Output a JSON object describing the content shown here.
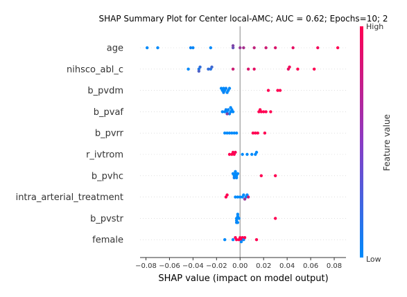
{
  "chart_data": {
    "type": "scatter",
    "title": "SHAP Summary Plot for Center local-AMC; AUC = 0.62; Epochs=10; 2",
    "xlabel": "SHAP value (impact on model output)",
    "ylabel": "",
    "xlim": [
      -0.085,
      0.09
    ],
    "x_ticks": [
      -0.08,
      -0.06,
      -0.04,
      -0.02,
      0.0,
      0.02,
      0.04,
      0.06,
      0.08
    ],
    "x_tick_labels": [
      "−0.08",
      "−0.06",
      "−0.04",
      "−0.02",
      "0.00",
      "0.02",
      "0.04",
      "0.06",
      "0.08"
    ],
    "grid": false,
    "colorbar": {
      "title": "Feature value",
      "high_label": "High",
      "low_label": "Low",
      "low_color": "#008afb",
      "high_color": "#ff0052"
    },
    "features": [
      {
        "name": "age",
        "points": [
          [
            -0.079,
            0.0
          ],
          [
            -0.07,
            0.0
          ],
          [
            -0.042,
            0.05
          ],
          [
            -0.04,
            0.02
          ],
          [
            -0.025,
            0.0
          ],
          [
            -0.006,
            0.4
          ],
          [
            -0.006,
            0.5
          ],
          [
            0.0,
            0.6
          ],
          [
            0.003,
            0.65
          ],
          [
            0.012,
            0.75
          ],
          [
            0.022,
            0.8
          ],
          [
            0.03,
            0.85
          ],
          [
            0.045,
            0.9
          ],
          [
            0.066,
            0.95
          ],
          [
            0.083,
            1.0
          ]
        ]
      },
      {
        "name": "nihsco_abl_c",
        "points": [
          [
            -0.044,
            0.0
          ],
          [
            -0.035,
            0.1
          ],
          [
            -0.034,
            0.2
          ],
          [
            -0.035,
            0.3
          ],
          [
            -0.025,
            0.15
          ],
          [
            -0.027,
            0.2
          ],
          [
            -0.024,
            0.25
          ],
          [
            -0.006,
            0.8
          ],
          [
            0.007,
            0.85
          ],
          [
            0.012,
            0.9
          ],
          [
            0.041,
            0.9
          ],
          [
            0.042,
            0.95
          ],
          [
            0.049,
            1.0
          ],
          [
            0.063,
            1.0
          ]
        ]
      },
      {
        "name": "b_pvdm",
        "points": [
          [
            -0.015,
            0.0
          ],
          [
            -0.014,
            0.0
          ],
          [
            -0.016,
            0.0
          ],
          [
            -0.013,
            0.0
          ],
          [
            -0.012,
            0.05
          ],
          [
            -0.01,
            0.0
          ],
          [
            -0.014,
            0.05
          ],
          [
            -0.011,
            0.0
          ],
          [
            -0.009,
            0.0
          ],
          [
            0.024,
            1.0
          ],
          [
            0.032,
            1.0
          ],
          [
            0.034,
            1.0
          ]
        ]
      },
      {
        "name": "b_pvaf",
        "points": [
          [
            -0.015,
            0.0
          ],
          [
            -0.013,
            0.0
          ],
          [
            -0.012,
            0.05
          ],
          [
            -0.011,
            0.0
          ],
          [
            -0.01,
            0.0
          ],
          [
            -0.008,
            0.0
          ],
          [
            -0.006,
            0.0
          ],
          [
            -0.009,
            0.05
          ],
          [
            -0.011,
            0.5
          ],
          [
            -0.007,
            0.0
          ],
          [
            -0.008,
            0.0
          ],
          [
            0.016,
            1.0
          ],
          [
            0.018,
            1.0
          ],
          [
            0.02,
            1.0
          ],
          [
            0.022,
            1.0
          ],
          [
            0.026,
            1.0
          ],
          [
            0.017,
            1.0
          ]
        ]
      },
      {
        "name": "b_pvrr",
        "points": [
          [
            -0.013,
            0.0
          ],
          [
            -0.011,
            0.0
          ],
          [
            -0.009,
            0.0
          ],
          [
            -0.007,
            0.0
          ],
          [
            -0.005,
            0.0
          ],
          [
            -0.003,
            0.0
          ],
          [
            0.011,
            1.0
          ],
          [
            0.013,
            1.0
          ],
          [
            0.015,
            1.0
          ],
          [
            0.021,
            1.0
          ]
        ]
      },
      {
        "name": "r_ivtrom",
        "points": [
          [
            -0.009,
            1.0
          ],
          [
            -0.007,
            1.0
          ],
          [
            -0.005,
            1.0
          ],
          [
            -0.004,
            0.95
          ],
          [
            -0.006,
            1.0
          ],
          [
            0.002,
            0.0
          ],
          [
            0.006,
            0.0
          ],
          [
            0.01,
            0.0
          ],
          [
            0.013,
            0.0
          ],
          [
            0.014,
            0.0
          ]
        ]
      },
      {
        "name": "b_pvhc",
        "points": [
          [
            -0.005,
            0.0
          ],
          [
            -0.004,
            0.0
          ],
          [
            -0.003,
            0.0
          ],
          [
            -0.006,
            0.0
          ],
          [
            -0.005,
            0.05
          ],
          [
            -0.004,
            0.0
          ],
          [
            -0.003,
            0.0
          ],
          [
            -0.002,
            0.0
          ],
          [
            0.018,
            1.0
          ],
          [
            0.03,
            1.0
          ]
        ]
      },
      {
        "name": "intra_arterial_treatment",
        "points": [
          [
            -0.012,
            1.0
          ],
          [
            -0.011,
            1.0
          ],
          [
            -0.004,
            0.0
          ],
          [
            -0.002,
            0.0
          ],
          [
            0.0,
            0.0
          ],
          [
            0.002,
            0.0
          ],
          [
            0.003,
            0.0
          ],
          [
            0.005,
            0.0
          ],
          [
            0.006,
            0.0
          ],
          [
            0.004,
            0.6
          ],
          [
            0.007,
            0.8
          ]
        ]
      },
      {
        "name": "b_pvstr",
        "points": [
          [
            -0.003,
            0.0
          ],
          [
            -0.002,
            0.0
          ],
          [
            -0.003,
            0.0
          ],
          [
            -0.002,
            0.0
          ],
          [
            -0.001,
            0.0
          ],
          [
            -0.003,
            0.05
          ],
          [
            -0.002,
            0.0
          ],
          [
            0.03,
            1.0
          ]
        ]
      },
      {
        "name": "female",
        "points": [
          [
            -0.013,
            0.0
          ],
          [
            -0.006,
            0.0
          ],
          [
            -0.003,
            1.0
          ],
          [
            -0.001,
            1.0
          ],
          [
            0.0,
            1.0
          ],
          [
            0.001,
            1.0
          ],
          [
            0.002,
            1.0
          ],
          [
            0.003,
            0.0
          ],
          [
            0.001,
            0.0
          ],
          [
            0.004,
            1.0
          ],
          [
            0.014,
            1.0
          ],
          [
            -0.004,
            1.0
          ]
        ]
      }
    ]
  }
}
